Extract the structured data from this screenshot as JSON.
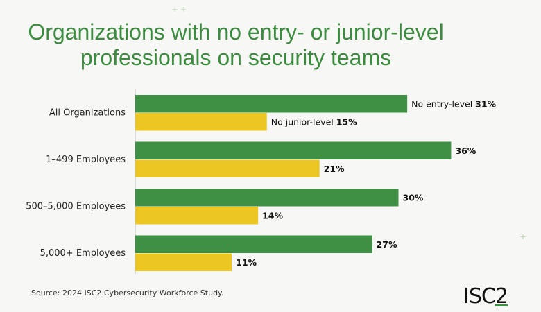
{
  "title": [
    "Organizations with no entry- or junior-level",
    "professionals on security teams"
  ],
  "source": "Source: 2024 ISC2 Cybersecurity Workforce Study.",
  "logo_text": "ISC2",
  "colors": {
    "title": "#3b8c3e",
    "entry": "#3f8f44",
    "junior": "#ecc623"
  },
  "chart_data": {
    "type": "bar",
    "orientation": "horizontal",
    "categories": [
      "All Organizations",
      "1–499 Employees",
      "500–5,000 Employees",
      "5,000+ Employees"
    ],
    "series": [
      {
        "name": "No entry-level",
        "values": [
          31,
          36,
          30,
          27
        ],
        "color": "#3f8f44"
      },
      {
        "name": "No junior-level",
        "values": [
          15,
          21,
          14,
          11
        ],
        "color": "#ecc623"
      }
    ],
    "value_suffix": "%",
    "xlim": [
      0,
      40
    ],
    "grid": false,
    "legend": "inline labels on first group"
  }
}
